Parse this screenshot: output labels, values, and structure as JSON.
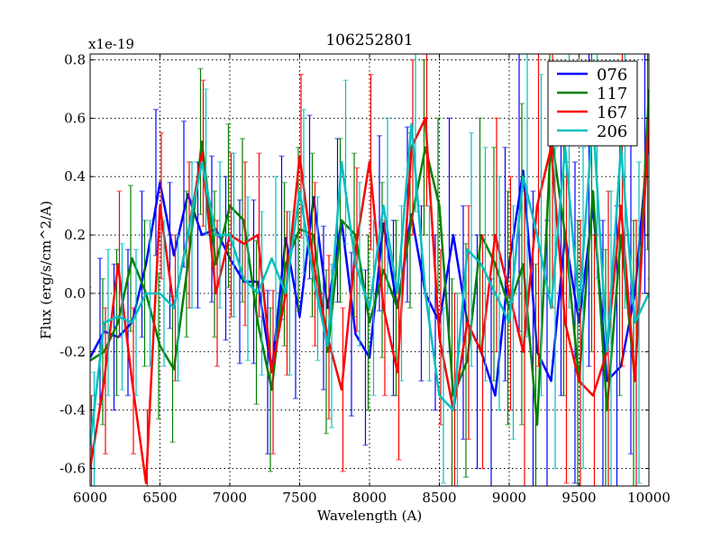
{
  "chart_data": {
    "type": "line",
    "title": "106252801",
    "xlabel": "Wavelength (A)",
    "ylabel": "Flux (erg/s/cm^2/A)",
    "offset_label": "x1e-19",
    "xlim": [
      6000,
      10000
    ],
    "ylim": [
      -0.66,
      0.82
    ],
    "xticks": [
      6000,
      6500,
      7000,
      7500,
      8000,
      8500,
      9000,
      9500,
      10000
    ],
    "xtick_labels": [
      "6000",
      "6500",
      "7000",
      "7500",
      "8000",
      "8500",
      "9000",
      "9500",
      "10000"
    ],
    "yticks": [
      -0.6,
      -0.4,
      -0.2,
      0.0,
      0.2,
      0.4,
      0.6,
      0.8
    ],
    "ytick_labels": [
      "-0.6",
      "-0.4",
      "-0.2",
      "0.0",
      "0.2",
      "0.4",
      "0.6",
      "0.8"
    ],
    "grid": true,
    "legend_position": "top-right",
    "x": [
      6000,
      6100,
      6200,
      6300,
      6400,
      6500,
      6600,
      6700,
      6800,
      6900,
      7000,
      7100,
      7200,
      7300,
      7400,
      7500,
      7600,
      7700,
      7800,
      7900,
      8000,
      8100,
      8200,
      8300,
      8400,
      8500,
      8600,
      8700,
      8800,
      8900,
      9000,
      9100,
      9200,
      9300,
      9400,
      9500,
      9600,
      9700,
      9800,
      9900,
      10000
    ],
    "yerr": [
      0.25,
      0.25,
      0.25,
      0.25,
      0.25,
      0.25,
      0.25,
      0.25,
      0.25,
      0.25,
      0.28,
      0.28,
      0.28,
      0.28,
      0.28,
      0.28,
      0.28,
      0.28,
      0.28,
      0.28,
      0.3,
      0.3,
      0.3,
      0.3,
      0.3,
      0.3,
      0.4,
      0.4,
      0.4,
      0.4,
      0.4,
      0.55,
      0.55,
      0.55,
      0.55,
      0.55,
      0.55,
      0.55,
      0.55,
      0.55,
      0.55
    ],
    "series": [
      {
        "name": "076",
        "color": "#0000ff",
        "values": [
          -0.22,
          -0.13,
          -0.15,
          -0.1,
          0.1,
          0.38,
          0.13,
          0.34,
          0.2,
          0.22,
          0.12,
          0.04,
          0.04,
          -0.27,
          0.19,
          -0.08,
          0.33,
          -0.05,
          0.25,
          -0.14,
          -0.22,
          0.24,
          -0.05,
          0.27,
          0.0,
          -0.1,
          0.2,
          -0.1,
          -0.2,
          -0.35,
          0.1,
          0.42,
          -0.2,
          -0.3,
          0.2,
          -0.1,
          0.3,
          -0.3,
          -0.25,
          0.0,
          0.55
        ]
      },
      {
        "name": "117",
        "color": "#008000",
        "values": [
          -0.23,
          -0.2,
          -0.1,
          0.12,
          0.0,
          -0.18,
          -0.26,
          0.1,
          0.52,
          0.1,
          0.3,
          0.25,
          -0.1,
          -0.33,
          0.1,
          0.22,
          0.2,
          -0.2,
          0.25,
          0.2,
          -0.1,
          0.08,
          -0.05,
          0.25,
          0.5,
          0.3,
          -0.35,
          -0.23,
          0.2,
          0.1,
          -0.05,
          0.1,
          -0.45,
          0.55,
          0.2,
          -0.3,
          0.35,
          -0.4,
          0.2,
          -0.3,
          0.7
        ]
      },
      {
        "name": "167",
        "color": "#ff0000",
        "values": [
          -0.6,
          -0.3,
          0.1,
          -0.3,
          -0.65,
          0.3,
          -0.05,
          0.2,
          0.48,
          0.0,
          0.2,
          0.17,
          0.2,
          -0.27,
          0.0,
          0.47,
          0.1,
          -0.15,
          -0.33,
          0.15,
          0.45,
          -0.05,
          -0.27,
          0.5,
          0.6,
          -0.15,
          -0.4,
          -0.1,
          -0.2,
          0.2,
          0.0,
          -0.2,
          0.3,
          0.5,
          -0.1,
          -0.3,
          -0.35,
          -0.2,
          0.3,
          -0.3,
          0.6
        ]
      },
      {
        "name": "206",
        "color": "#00bfbf",
        "values": [
          -0.52,
          -0.1,
          -0.08,
          -0.1,
          0.0,
          0.0,
          -0.05,
          0.2,
          0.45,
          0.2,
          0.2,
          0.05,
          0.0,
          0.12,
          0.0,
          0.35,
          0.05,
          -0.18,
          0.45,
          0.1,
          -0.05,
          0.3,
          0.0,
          0.58,
          0.0,
          -0.35,
          -0.4,
          0.15,
          0.1,
          0.0,
          -0.1,
          0.4,
          0.2,
          -0.05,
          0.5,
          -0.05,
          0.6,
          -0.2,
          0.5,
          -0.1,
          0.0
        ]
      }
    ]
  }
}
